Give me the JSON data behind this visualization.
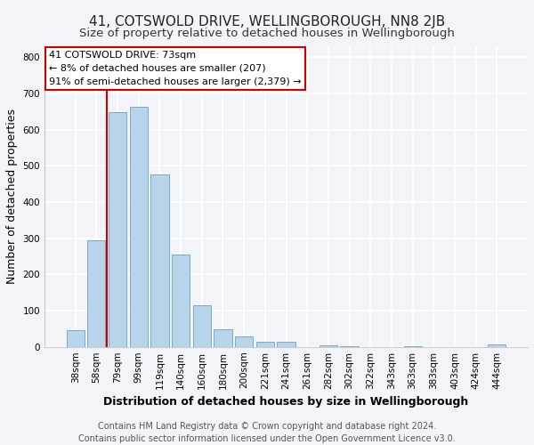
{
  "title": "41, COTSWOLD DRIVE, WELLINGBOROUGH, NN8 2JB",
  "subtitle": "Size of property relative to detached houses in Wellingborough",
  "xlabel": "Distribution of detached houses by size in Wellingborough",
  "ylabel": "Number of detached properties",
  "bar_labels": [
    "38sqm",
    "58sqm",
    "79sqm",
    "99sqm",
    "119sqm",
    "140sqm",
    "160sqm",
    "180sqm",
    "200sqm",
    "221sqm",
    "241sqm",
    "261sqm",
    "282sqm",
    "302sqm",
    "322sqm",
    "343sqm",
    "363sqm",
    "383sqm",
    "403sqm",
    "424sqm",
    "444sqm"
  ],
  "bar_values": [
    47,
    295,
    648,
    662,
    477,
    254,
    114,
    48,
    28,
    15,
    14,
    0,
    5,
    2,
    0,
    0,
    3,
    0,
    0,
    0,
    7
  ],
  "bar_color": "#b8d4ea",
  "bar_edge_color": "#7aaac8",
  "annotation_line_color": "#cc0000",
  "annotation_box_edge_color": "#cc0000",
  "annotation_box_text_line1": "41 COTSWOLD DRIVE: 73sqm",
  "annotation_box_text_line2": "← 8% of detached houses are smaller (207)",
  "annotation_box_text_line3": "91% of semi-detached houses are larger (2,379) →",
  "ylim": [
    0,
    830
  ],
  "yticks": [
    0,
    100,
    200,
    300,
    400,
    500,
    600,
    700,
    800
  ],
  "footer_line1": "Contains HM Land Registry data © Crown copyright and database right 2024.",
  "footer_line2": "Contains public sector information licensed under the Open Government Licence v3.0.",
  "background_color": "#f2f4f7",
  "plot_background": "#f2f4f7",
  "grid_color": "#ffffff",
  "title_fontsize": 11,
  "subtitle_fontsize": 9.5,
  "axis_label_fontsize": 9,
  "tick_fontsize": 7.5,
  "annotation_fontsize": 8,
  "footer_fontsize": 7
}
